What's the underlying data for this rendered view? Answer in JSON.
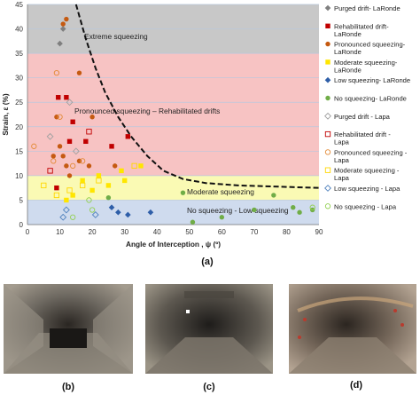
{
  "chart_data": {
    "type": "scatter",
    "xlabel": "Angle of Interception , ψ  (º)",
    "ylabel": "Strain, ε (%)",
    "xlim": [
      0,
      90
    ],
    "ylim": [
      0,
      45
    ],
    "xticks": [
      "0",
      "10",
      "20",
      "30",
      "40",
      "50",
      "60",
      "70",
      "80",
      "90"
    ],
    "yticks": [
      "0",
      "5",
      "10",
      "15",
      "20",
      "25",
      "30",
      "35",
      "40",
      "45"
    ],
    "zones": [
      {
        "label": "Extreme squeezing",
        "ymin": 35,
        "ymax": 45,
        "color": "#c8c8c8"
      },
      {
        "label": "Pronounced squeezing – Rehabilitated drifts",
        "ymin": 10,
        "ymax": 35,
        "color": "#f7c3c3"
      },
      {
        "label": "Moderate squeezing",
        "ymin": 5,
        "ymax": 10,
        "color": "#fafab4"
      },
      {
        "label": "No squeezing - Low squeezing",
        "ymin": 0,
        "ymax": 5,
        "color": "#cfdbee"
      }
    ],
    "boundary_curve": [
      [
        15,
        45
      ],
      [
        18,
        38
      ],
      [
        21,
        32
      ],
      [
        24,
        27
      ],
      [
        28,
        22
      ],
      [
        32,
        18
      ],
      [
        37,
        14
      ],
      [
        42,
        11
      ],
      [
        48,
        9.3
      ],
      [
        55,
        8.5
      ],
      [
        65,
        8
      ],
      [
        75,
        7.8
      ],
      [
        90,
        7.5
      ]
    ],
    "series": [
      {
        "name": "Purged drift- LaRonde",
        "marker": "diamond",
        "filled": true,
        "color": "#7f7f7f",
        "points": [
          [
            11,
            40
          ],
          [
            10,
            37
          ]
        ]
      },
      {
        "name": "Rehabilitated drift- LaRonde",
        "marker": "square",
        "filled": true,
        "color": "#c00000",
        "points": [
          [
            9.5,
            26
          ],
          [
            12,
            26
          ],
          [
            14,
            21
          ],
          [
            13,
            17
          ],
          [
            18,
            17
          ],
          [
            26,
            16
          ],
          [
            31,
            18
          ],
          [
            9,
            7.5
          ]
        ]
      },
      {
        "name": "Pronounced squeezing- LaRonde",
        "marker": "circle",
        "filled": true,
        "color": "#c55a11",
        "points": [
          [
            11,
            41
          ],
          [
            12,
            42
          ],
          [
            16,
            31
          ],
          [
            9,
            22
          ],
          [
            20,
            22
          ],
          [
            10,
            16
          ],
          [
            16,
            13
          ],
          [
            19,
            12
          ],
          [
            11,
            14
          ],
          [
            12,
            12
          ],
          [
            13,
            10
          ],
          [
            27,
            12
          ],
          [
            8,
            14
          ]
        ]
      },
      {
        "name": "Moderate squeezing- LaRonde",
        "marker": "square",
        "filled": true,
        "color": "#ffe600",
        "points": [
          [
            17,
            9
          ],
          [
            20,
            7
          ],
          [
            22,
            10
          ],
          [
            29,
            11
          ],
          [
            30,
            9
          ],
          [
            12,
            5
          ],
          [
            14,
            6
          ],
          [
            35,
            12
          ],
          [
            25,
            8
          ]
        ]
      },
      {
        "name": "Low squeezing- LaRonde",
        "marker": "diamond",
        "filled": true,
        "color": "#2e5ea8",
        "points": [
          [
            26,
            3.5
          ],
          [
            28,
            2.5
          ],
          [
            31,
            2
          ],
          [
            38,
            2.5
          ]
        ]
      },
      {
        "name": "No squeezing- LaRonde",
        "marker": "circle",
        "filled": true,
        "color": "#70ad47",
        "points": [
          [
            51,
            0.5
          ],
          [
            60,
            1.5
          ],
          [
            70,
            3
          ],
          [
            82,
            3.5
          ],
          [
            88,
            3
          ],
          [
            84,
            2.5
          ],
          [
            76,
            6
          ],
          [
            48,
            6.5
          ],
          [
            25,
            5.5
          ]
        ]
      },
      {
        "name": "Purged drift - Lapa",
        "marker": "diamond",
        "filled": false,
        "color": "#a0a0a0",
        "points": [
          [
            13,
            25
          ],
          [
            15,
            15
          ],
          [
            7,
            18
          ]
        ]
      },
      {
        "name": "Rehabilitated drift - Lapa",
        "marker": "square",
        "filled": false,
        "color": "#c00000",
        "points": [
          [
            19,
            19
          ],
          [
            7,
            11
          ]
        ]
      },
      {
        "name": "Pronounced squeezing - Lapa",
        "marker": "circle",
        "filled": false,
        "color": "#e38a35",
        "points": [
          [
            9,
            31
          ],
          [
            2,
            16
          ],
          [
            10,
            22
          ],
          [
            8,
            13
          ],
          [
            17,
            13
          ],
          [
            14,
            12
          ]
        ]
      },
      {
        "name": "Moderate squeezing - Lapa",
        "marker": "square",
        "filled": false,
        "color": "#ffd700",
        "points": [
          [
            5,
            8
          ],
          [
            9,
            6
          ],
          [
            13,
            7
          ],
          [
            17,
            8
          ],
          [
            22,
            9
          ],
          [
            33,
            12
          ]
        ]
      },
      {
        "name": "Low squeezing - Lapa",
        "marker": "diamond",
        "filled": false,
        "color": "#4f81bd",
        "points": [
          [
            11,
            1.5
          ],
          [
            21,
            2
          ],
          [
            12,
            3
          ]
        ]
      },
      {
        "name": "No squeezing - Lapa",
        "marker": "circle",
        "filled": false,
        "color": "#92d050",
        "points": [
          [
            14,
            1.5
          ],
          [
            20,
            3
          ],
          [
            19,
            5
          ],
          [
            88,
            3.5
          ]
        ]
      }
    ]
  },
  "figure": {
    "caption_a": "(a)",
    "caption_b": "(b)",
    "caption_c": "(c)",
    "caption_d": "(d)"
  }
}
